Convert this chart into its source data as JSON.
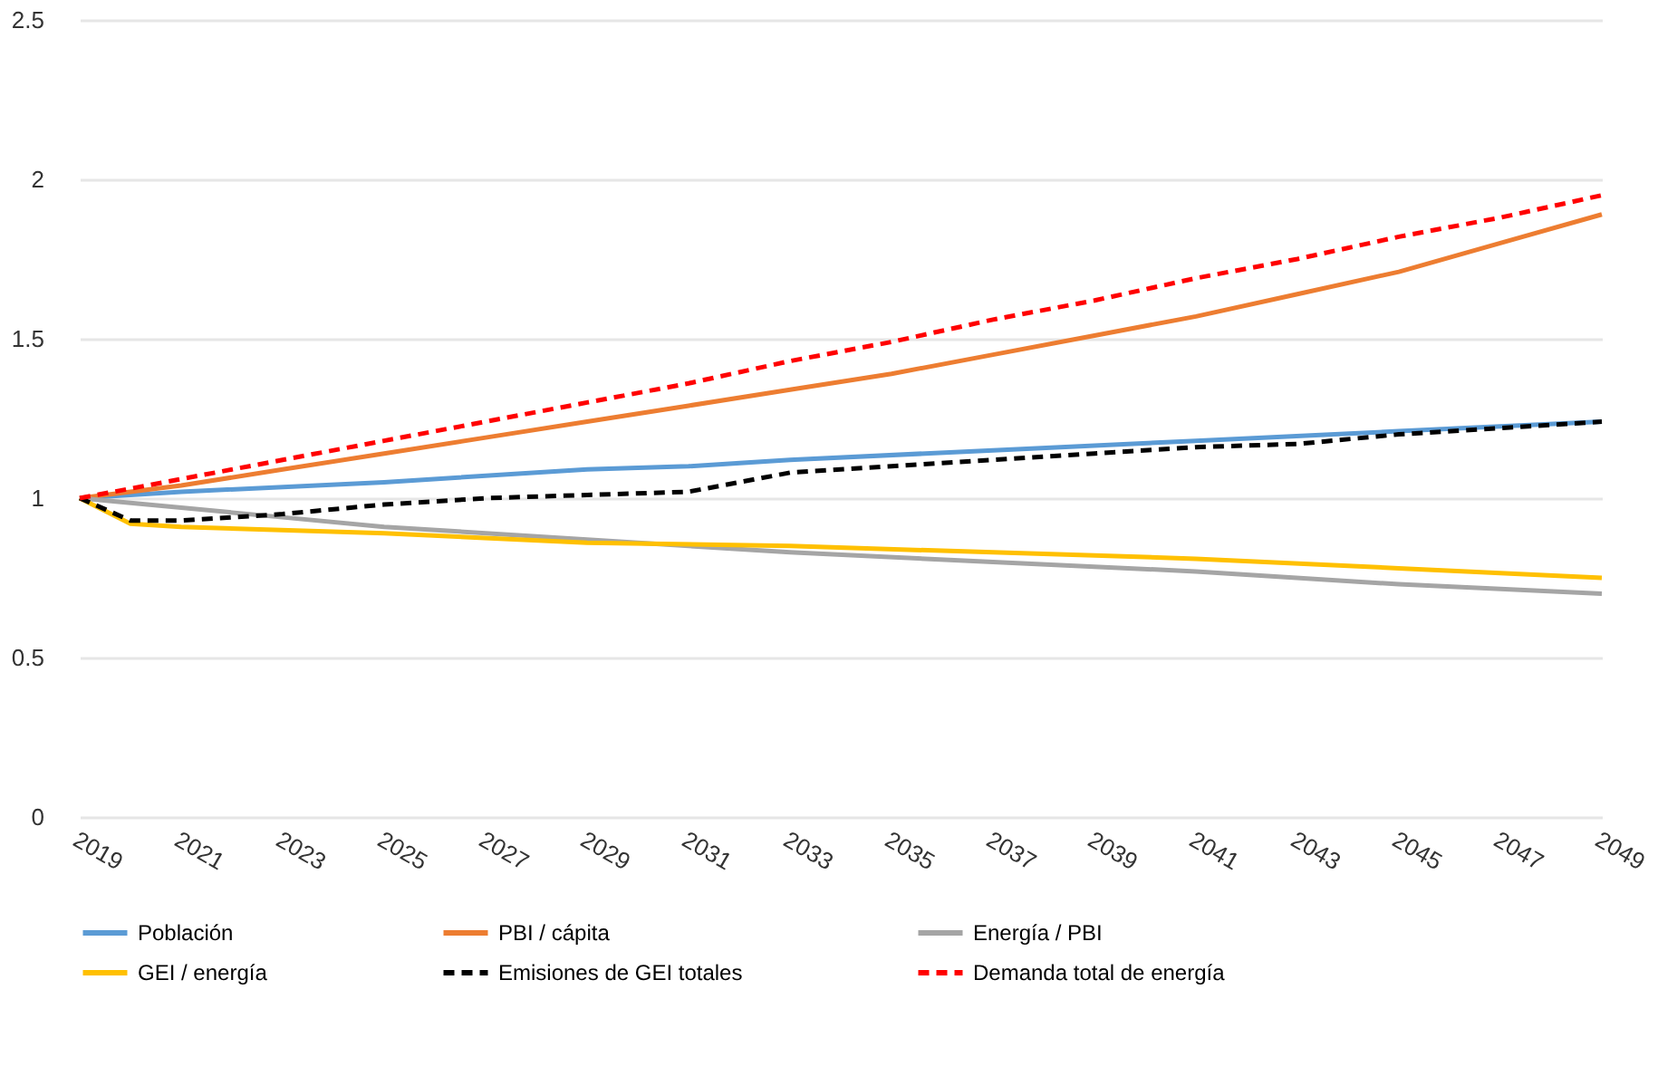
{
  "chart_data": {
    "type": "line",
    "ylim": [
      0,
      2.5
    ],
    "yticks": [
      0,
      {
        "value": 0.5,
        "label": "0.5"
      },
      1,
      {
        "value": 1.5,
        "label": "1.5"
      },
      2,
      {
        "value": 2.5,
        "label": "2.5"
      }
    ],
    "xlim": [
      2019,
      2049
    ],
    "xticks": [
      2019,
      2021,
      2023,
      2025,
      2027,
      2029,
      2031,
      2033,
      2035,
      2037,
      2039,
      2041,
      2043,
      2045,
      2047,
      2049
    ],
    "grid": "y",
    "legend": "bottom",
    "series": [
      {
        "name": "Población",
        "color": "#5b9bd5",
        "line_style": "solid",
        "x": [
          2019,
          2021,
          2025,
          2029,
          2031,
          2033,
          2037,
          2041,
          2045,
          2049
        ],
        "values": [
          1,
          1.02,
          1.05,
          1.09,
          1.1,
          1.12,
          1.15,
          1.18,
          1.21,
          1.24
        ]
      },
      {
        "name": "PBI / cápita",
        "color": "#ed7d31",
        "line_style": "solid",
        "x": [
          2019,
          2021,
          2023,
          2025,
          2027,
          2029,
          2031,
          2033,
          2035,
          2037,
          2039,
          2041,
          2043,
          2045,
          2047,
          2049
        ],
        "values": [
          1,
          1.04,
          1.09,
          1.14,
          1.19,
          1.24,
          1.29,
          1.34,
          1.39,
          1.45,
          1.51,
          1.57,
          1.64,
          1.71,
          1.8,
          1.89
        ]
      },
      {
        "name": "Energía / PBI",
        "color": "#a5a5a5",
        "line_style": "solid",
        "x": [
          2019,
          2021,
          2023,
          2025,
          2029,
          2033,
          2037,
          2041,
          2045,
          2049
        ],
        "values": [
          1,
          0.97,
          0.94,
          0.91,
          0.87,
          0.83,
          0.8,
          0.77,
          0.73,
          0.7
        ]
      },
      {
        "name": "GEI / energía",
        "color": "#ffc000",
        "line_style": "solid",
        "x": [
          2019,
          2020,
          2021,
          2025,
          2029,
          2033,
          2037,
          2041,
          2045,
          2049
        ],
        "values": [
          1,
          0.92,
          0.91,
          0.89,
          0.86,
          0.85,
          0.83,
          0.81,
          0.78,
          0.75
        ]
      },
      {
        "name": "Emisiones de GEI totales",
        "color": "#000000",
        "line_style": "dashed",
        "x": [
          2019,
          2020,
          2021,
          2023,
          2025,
          2027,
          2029,
          2031,
          2033,
          2035,
          2037,
          2039,
          2041,
          2043,
          2045,
          2047,
          2049
        ],
        "values": [
          1,
          0.93,
          0.93,
          0.95,
          0.98,
          1.0,
          1.01,
          1.02,
          1.08,
          1.1,
          1.12,
          1.14,
          1.16,
          1.17,
          1.2,
          1.22,
          1.24
        ]
      },
      {
        "name": "Demanda total de energía",
        "color": "#ff0000",
        "line_style": "dashed",
        "x": [
          2019,
          2021,
          2023,
          2025,
          2027,
          2029,
          2031,
          2033,
          2035,
          2037,
          2039,
          2041,
          2043,
          2045,
          2047,
          2049
        ],
        "values": [
          1,
          1.06,
          1.12,
          1.18,
          1.24,
          1.3,
          1.36,
          1.43,
          1.49,
          1.56,
          1.62,
          1.69,
          1.75,
          1.82,
          1.88,
          1.95
        ]
      }
    ]
  }
}
